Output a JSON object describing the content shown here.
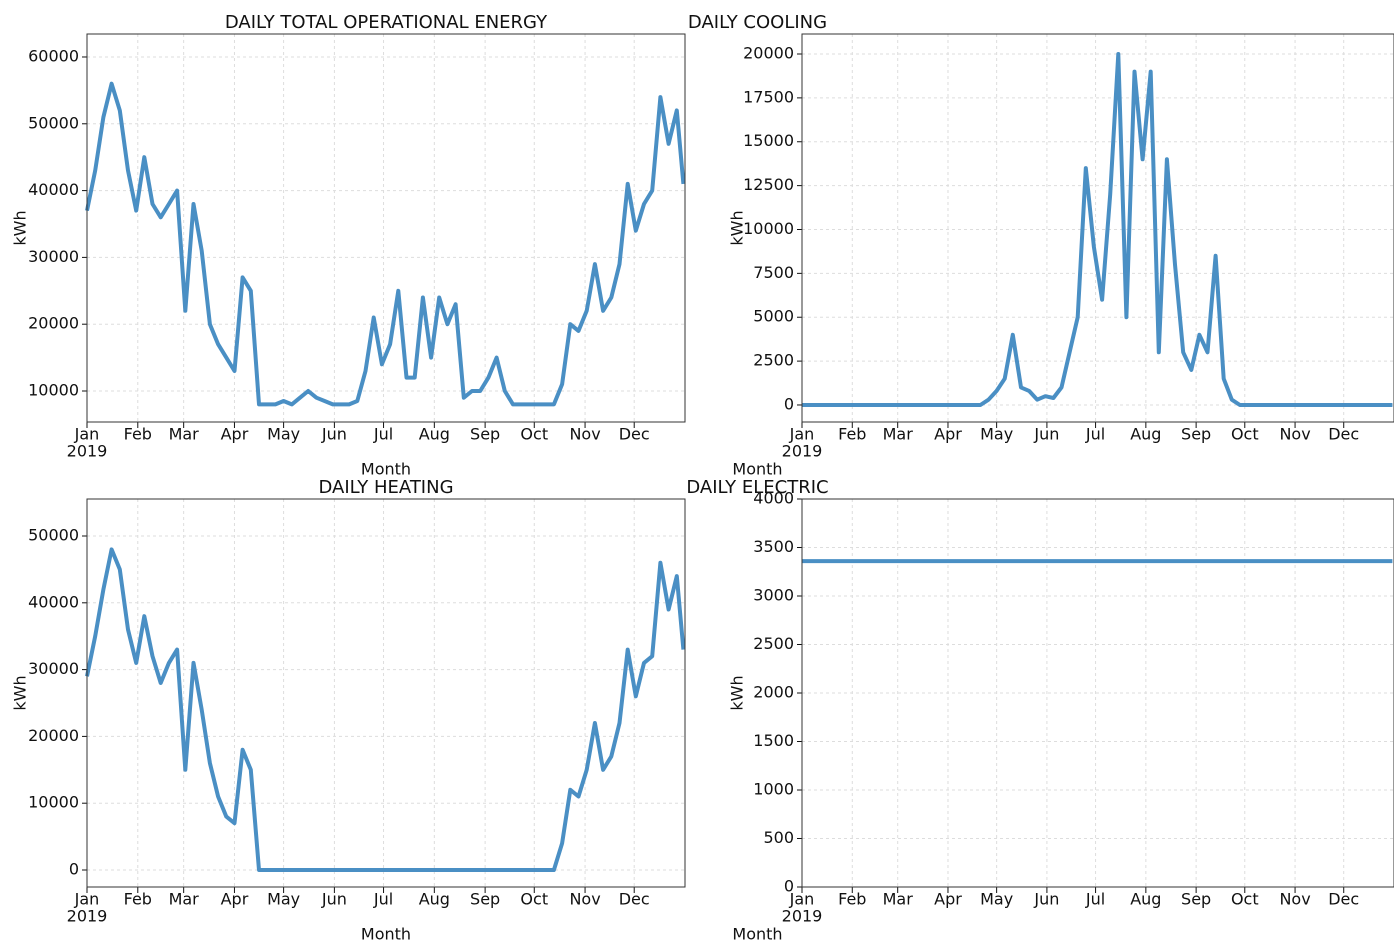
{
  "chart_data": [
    {
      "type": "line",
      "title": "DAILY TOTAL OPERATIONAL ENERGY",
      "x_label": "Month",
      "y_label": "kWh",
      "x_sublabel": "2019",
      "xlim": [
        0,
        365
      ],
      "xticks": [
        {
          "value": 0,
          "label": "Jan"
        },
        {
          "value": 31,
          "label": "Feb"
        },
        {
          "value": 59,
          "label": "Mar"
        },
        {
          "value": 90,
          "label": "Apr"
        },
        {
          "value": 120,
          "label": "May"
        },
        {
          "value": 151,
          "label": "Jun"
        },
        {
          "value": 181,
          "label": "Jul"
        },
        {
          "value": 212,
          "label": "Aug"
        },
        {
          "value": 243,
          "label": "Sep"
        },
        {
          "value": 273,
          "label": "Oct"
        },
        {
          "value": 304,
          "label": "Nov"
        },
        {
          "value": 334,
          "label": "Dec"
        }
      ],
      "ylim": [
        5360,
        63440
      ],
      "yticks": [
        10000,
        20000,
        30000,
        40000,
        50000,
        60000
      ],
      "grid": true,
      "series": [
        {
          "color": "#4a8fc4",
          "x": [
            0,
            5,
            10,
            15,
            20,
            25,
            30,
            35,
            40,
            45,
            50,
            55,
            60,
            65,
            70,
            75,
            80,
            85,
            90,
            95,
            100,
            105,
            110,
            115,
            120,
            125,
            130,
            135,
            140,
            145,
            150,
            155,
            160,
            165,
            170,
            175,
            180,
            185,
            190,
            195,
            200,
            205,
            210,
            215,
            220,
            225,
            230,
            235,
            240,
            245,
            250,
            255,
            260,
            265,
            270,
            275,
            280,
            285,
            290,
            295,
            300,
            305,
            310,
            315,
            320,
            325,
            330,
            335,
            340,
            345,
            350,
            355,
            360,
            364
          ],
          "values": [
            37000,
            43000,
            51000,
            56000,
            52000,
            43000,
            37000,
            45000,
            38000,
            36000,
            38000,
            40000,
            22000,
            38000,
            31000,
            20000,
            17000,
            15000,
            13000,
            27000,
            25000,
            8000,
            8000,
            8000,
            8500,
            8000,
            9000,
            10000,
            9000,
            8500,
            8000,
            8000,
            8000,
            8500,
            13000,
            21000,
            14000,
            17000,
            25000,
            12000,
            12000,
            24000,
            15000,
            24000,
            20000,
            23000,
            9000,
            10000,
            10000,
            12000,
            15000,
            10000,
            8000,
            8000,
            8000,
            8000,
            8000,
            8000,
            11000,
            20000,
            19000,
            22000,
            29000,
            22000,
            24000,
            29000,
            41000,
            34000,
            38000,
            40000,
            54000,
            47000,
            52000,
            41000
          ]
        }
      ]
    },
    {
      "type": "line",
      "title": "DAILY COOLING",
      "x_label": "Month",
      "y_label": "kWh",
      "x_sublabel": "2019",
      "xlim": [
        0,
        365
      ],
      "xticks": [
        {
          "value": 0,
          "label": "Jan"
        },
        {
          "value": 31,
          "label": "Feb"
        },
        {
          "value": 59,
          "label": "Mar"
        },
        {
          "value": 90,
          "label": "Apr"
        },
        {
          "value": 120,
          "label": "May"
        },
        {
          "value": 151,
          "label": "Jun"
        },
        {
          "value": 181,
          "label": "Jul"
        },
        {
          "value": 212,
          "label": "Aug"
        },
        {
          "value": 243,
          "label": "Sep"
        },
        {
          "value": 273,
          "label": "Oct"
        },
        {
          "value": 304,
          "label": "Nov"
        },
        {
          "value": 334,
          "label": "Dec"
        }
      ],
      "ylim": [
        -970,
        21140
      ],
      "yticks": [
        0,
        2500,
        5000,
        7500,
        10000,
        12500,
        15000,
        17500,
        20000
      ],
      "grid": true,
      "series": [
        {
          "color": "#4a8fc4",
          "x": [
            0,
            5,
            10,
            15,
            20,
            25,
            30,
            35,
            40,
            45,
            50,
            55,
            60,
            65,
            70,
            75,
            80,
            85,
            90,
            95,
            100,
            105,
            110,
            115,
            120,
            125,
            130,
            135,
            140,
            145,
            150,
            155,
            160,
            165,
            170,
            175,
            180,
            185,
            190,
            195,
            200,
            205,
            210,
            215,
            220,
            225,
            230,
            235,
            240,
            245,
            250,
            255,
            260,
            265,
            270,
            275,
            280,
            285,
            290,
            295,
            300,
            305,
            310,
            315,
            320,
            325,
            330,
            335,
            340,
            345,
            350,
            355,
            360,
            364
          ],
          "values": [
            0,
            0,
            0,
            0,
            0,
            0,
            0,
            0,
            0,
            0,
            0,
            0,
            0,
            0,
            0,
            0,
            0,
            0,
            0,
            0,
            0,
            0,
            0,
            300,
            800,
            1500,
            4000,
            1000,
            800,
            300,
            500,
            400,
            1000,
            3000,
            5000,
            13500,
            9000,
            6000,
            12000,
            20000,
            5000,
            19000,
            14000,
            19000,
            3000,
            14000,
            8000,
            3000,
            2000,
            4000,
            3000,
            8500,
            1500,
            300,
            0,
            0,
            0,
            0,
            0,
            0,
            0,
            0,
            0,
            0,
            0,
            0,
            0,
            0,
            0,
            0,
            0,
            0,
            0,
            0
          ]
        }
      ]
    },
    {
      "type": "line",
      "title": "DAILY HEATING",
      "x_label": "Month",
      "y_label": "kWh",
      "x_sublabel": "2019",
      "xlim": [
        0,
        365
      ],
      "xticks": [
        {
          "value": 0,
          "label": "Jan"
        },
        {
          "value": 31,
          "label": "Feb"
        },
        {
          "value": 59,
          "label": "Mar"
        },
        {
          "value": 90,
          "label": "Apr"
        },
        {
          "value": 120,
          "label": "May"
        },
        {
          "value": 151,
          "label": "Jun"
        },
        {
          "value": 181,
          "label": "Jul"
        },
        {
          "value": 212,
          "label": "Aug"
        },
        {
          "value": 243,
          "label": "Sep"
        },
        {
          "value": 273,
          "label": "Oct"
        },
        {
          "value": 304,
          "label": "Nov"
        },
        {
          "value": 334,
          "label": "Dec"
        }
      ],
      "ylim": [
        -2545,
        55540
      ],
      "yticks": [
        0,
        10000,
        20000,
        30000,
        40000,
        50000
      ],
      "grid": true,
      "series": [
        {
          "color": "#4a8fc4",
          "x": [
            0,
            5,
            10,
            15,
            20,
            25,
            30,
            35,
            40,
            45,
            50,
            55,
            60,
            65,
            70,
            75,
            80,
            85,
            90,
            95,
            100,
            105,
            110,
            115,
            120,
            125,
            130,
            135,
            140,
            145,
            150,
            155,
            160,
            165,
            170,
            175,
            180,
            185,
            190,
            195,
            200,
            205,
            210,
            215,
            220,
            225,
            230,
            235,
            240,
            245,
            250,
            255,
            260,
            265,
            270,
            275,
            280,
            285,
            290,
            295,
            300,
            305,
            310,
            315,
            320,
            325,
            330,
            335,
            340,
            345,
            350,
            355,
            360,
            364
          ],
          "values": [
            29000,
            35000,
            42000,
            48000,
            45000,
            36000,
            31000,
            38000,
            32000,
            28000,
            31000,
            33000,
            15000,
            31000,
            24000,
            16000,
            11000,
            8000,
            7000,
            18000,
            15000,
            0,
            0,
            0,
            0,
            0,
            0,
            0,
            0,
            0,
            0,
            0,
            0,
            0,
            0,
            0,
            0,
            0,
            0,
            0,
            0,
            0,
            0,
            0,
            0,
            0,
            0,
            0,
            0,
            0,
            0,
            0,
            0,
            0,
            0,
            0,
            0,
            0,
            4000,
            12000,
            11000,
            15000,
            22000,
            15000,
            17000,
            22000,
            33000,
            26000,
            31000,
            32000,
            46000,
            39000,
            44000,
            33000
          ]
        }
      ]
    },
    {
      "type": "line",
      "title": "DAILY ELECTRIC",
      "x_label": "Month",
      "y_label": "kWh",
      "x_sublabel": "2019",
      "xlim": [
        0,
        365
      ],
      "xticks": [
        {
          "value": 0,
          "label": "Jan"
        },
        {
          "value": 31,
          "label": "Feb"
        },
        {
          "value": 59,
          "label": "Mar"
        },
        {
          "value": 90,
          "label": "Apr"
        },
        {
          "value": 120,
          "label": "May"
        },
        {
          "value": 151,
          "label": "Jun"
        },
        {
          "value": 181,
          "label": "Jul"
        },
        {
          "value": 212,
          "label": "Aug"
        },
        {
          "value": 243,
          "label": "Sep"
        },
        {
          "value": 273,
          "label": "Oct"
        },
        {
          "value": 304,
          "label": "Nov"
        },
        {
          "value": 334,
          "label": "Dec"
        }
      ],
      "ylim": [
        0,
        4000
      ],
      "yticks": [
        0,
        500,
        1000,
        1500,
        2000,
        2500,
        3000,
        3500,
        4000
      ],
      "grid": true,
      "series": [
        {
          "color": "#4a8fc4",
          "x": [
            0,
            364
          ],
          "values": [
            3360,
            3360
          ]
        }
      ]
    }
  ]
}
